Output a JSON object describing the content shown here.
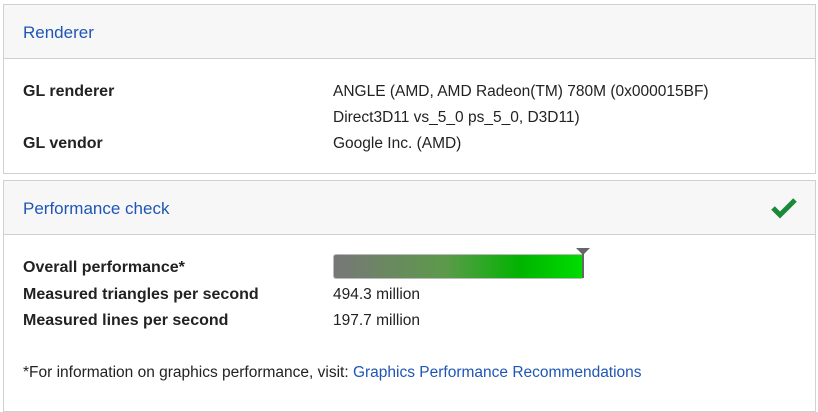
{
  "renderer": {
    "title": "Renderer",
    "rows": [
      {
        "label": "GL renderer",
        "value_lines": [
          "ANGLE (AMD, AMD Radeon(TM) 780M (0x000015BF)",
          "Direct3D11 vs_5_0 ps_5_0, D3D11)"
        ]
      },
      {
        "label": "GL vendor",
        "value": "Google Inc. (AMD)"
      }
    ]
  },
  "performance": {
    "title": "Performance check",
    "status_icon": "check-icon",
    "status_color": "#1a8a3a",
    "overall_label": "Overall performance*",
    "overall_level_percent": 100,
    "rows": [
      {
        "label": "Measured triangles per second",
        "value": "494.3 million"
      },
      {
        "label": "Measured lines per second",
        "value": "197.7 million"
      }
    ],
    "footnote": "*For information on graphics performance, visit: ",
    "link": "Graphics Performance Recommendations"
  }
}
